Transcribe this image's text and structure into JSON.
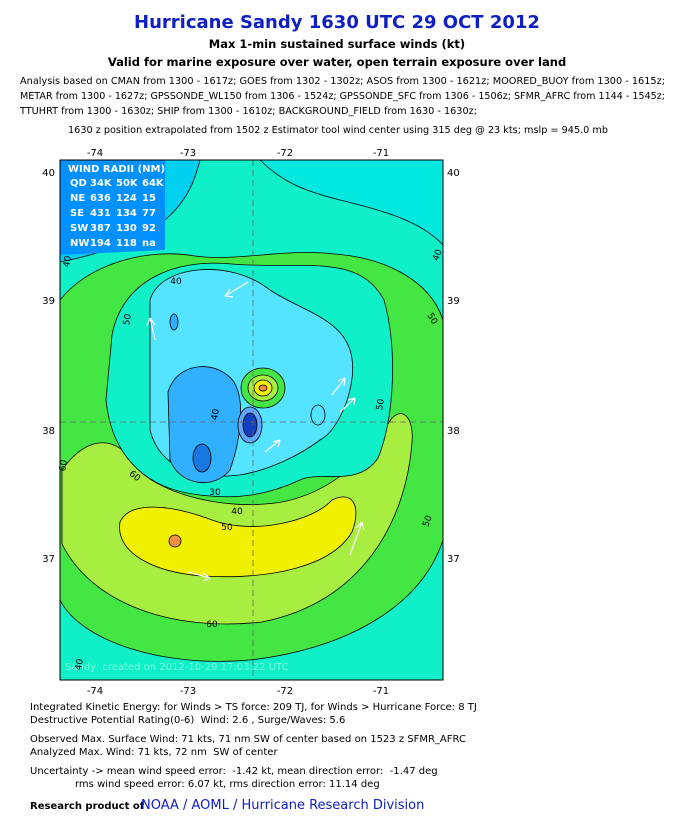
{
  "header": {
    "title": "Hurricane Sandy 1630 UTC 29 OCT 2012",
    "subtitle": "Max 1-min sustained surface winds (kt)",
    "validity": "Valid for marine exposure over water, open terrain exposure over land",
    "analysis_lines": [
      "Analysis based on CMAN from 1300 - 1617z; GOES from 1302 - 1302z; ASOS from 1300 - 1621z; MOORED_BUOY from 1300 - 1615z;",
      "METAR from 1300 - 1627z; GPSSONDE_WL150 from 1306 - 1524z; GPSSONDE_SFC from 1306 - 1506z; SFMR_AFRC from 1144 - 1545z;",
      "TTUHRT from 1300 - 1630z; SHIP from 1300 - 1610z; BACKGROUND_FIELD from 1630 - 1630z;"
    ],
    "position_note": "1630 z position extrapolated from 1502 z Estimator tool wind center using 315 deg @ 23 kts; mslp = 945.0 mb"
  },
  "map": {
    "lon_labels": [
      "-74",
      "-73",
      "-72",
      "-71"
    ],
    "lat_labels": [
      "40",
      "39",
      "38",
      "37"
    ],
    "wind_radii": {
      "title": "WIND RADII (NM)",
      "rows": [
        [
          "QD",
          "34K",
          "50K",
          "64K"
        ],
        [
          "NE",
          "636",
          "124",
          "15"
        ],
        [
          "SE",
          "431",
          "134",
          "77"
        ],
        [
          "SW",
          "387",
          "130",
          "92"
        ],
        [
          "NW",
          "194",
          "118",
          "na"
        ]
      ]
    },
    "contour_labels": [
      "40",
      "50",
      "40",
      "50",
      "50",
      "60",
      "60",
      "50",
      "40",
      "30",
      "40",
      "60",
      "50",
      "40",
      "40"
    ],
    "watermark": "Sandy  created on 2012-10-29 17:03:22 UTC"
  },
  "footer": {
    "lines": [
      "Integrated Kinetic Energy: for Winds > TS force: 209 TJ, for Winds > Hurricane Force: 8 TJ",
      "Destructive Potential Rating(0-6)  Wind: 2.6 , Surge/Waves: 5.6",
      "Observed Max. Surface Wind: 71 kts, 71 nm SW of center based on 1523 z SFMR_AFRC",
      "Analyzed Max. Wind: 71 kts, 72 nm  SW of center",
      "Uncertainty -> mean wind speed error:  -1.42 kt, mean direction error:  -1.47 deg",
      "rms wind speed error: 6.07 kt, rms direction error: 11.14 deg"
    ],
    "credit_prefix": "Research product of",
    "credit": "NOAA / AOML / Hurricane Research Division"
  }
}
